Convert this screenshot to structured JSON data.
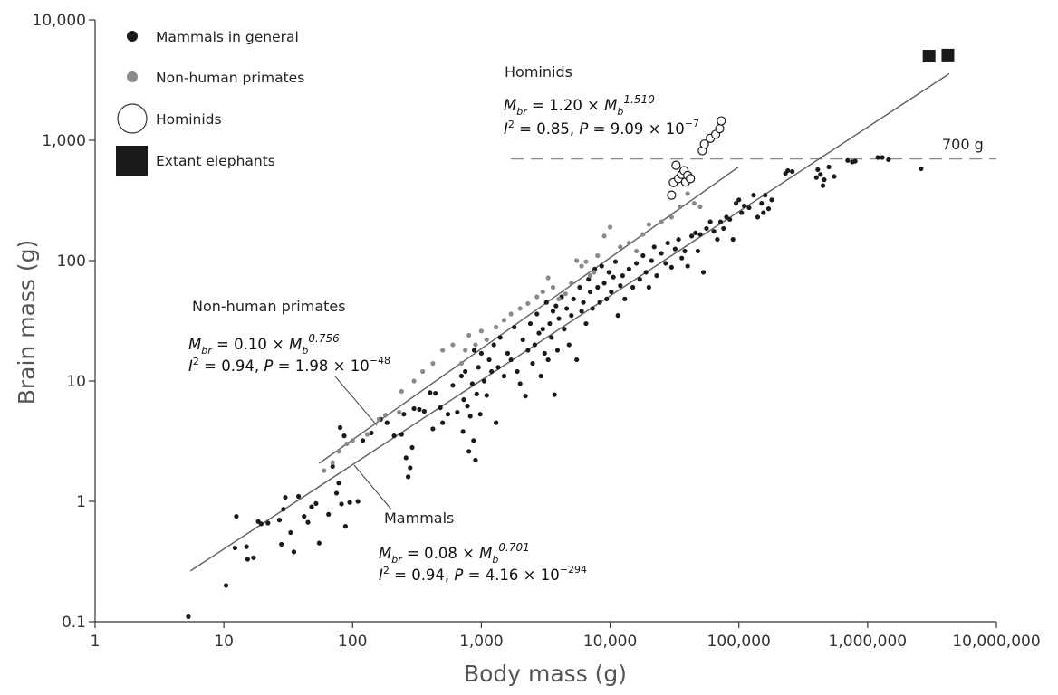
{
  "chart_data": {
    "type": "scatter",
    "xscale": "log",
    "yscale": "log",
    "xlim": [
      1,
      10000000
    ],
    "ylim": [
      0.1,
      10000
    ],
    "xlabel": "Body mass (g)",
    "ylabel": "Brain mass (g)",
    "xticks": [
      {
        "value": 1,
        "label": "1"
      },
      {
        "value": 10,
        "label": "10"
      },
      {
        "value": 100,
        "label": "100"
      },
      {
        "value": 1000,
        "label": "1,000"
      },
      {
        "value": 10000,
        "label": "10,000"
      },
      {
        "value": 100000,
        "label": "100,000"
      },
      {
        "value": 1000000,
        "label": "1,000,000"
      },
      {
        "value": 10000000,
        "label": "10,000,000"
      }
    ],
    "yticks": [
      {
        "value": 0.1,
        "label": "0.1"
      },
      {
        "value": 1,
        "label": "1"
      },
      {
        "value": 10,
        "label": "10"
      },
      {
        "value": 100,
        "label": "100"
      },
      {
        "value": 1000,
        "label": "1,000"
      },
      {
        "value": 10000,
        "label": "10,000"
      }
    ],
    "legend": [
      {
        "label": "Mammals in general",
        "marker": "circle",
        "color": "#1a1a1a"
      },
      {
        "label": "Non-human primates",
        "marker": "circle",
        "color": "#8a8a8a"
      },
      {
        "label": "Hominids",
        "marker": "open-circle",
        "color": "#1a1a1a"
      },
      {
        "label": "Extant elephants",
        "marker": "square",
        "color": "#1a1a1a"
      }
    ],
    "series": [
      {
        "name": "Mammals in general",
        "color": "#1a1a1a",
        "points": [
          [
            5.3,
            0.11
          ],
          [
            10.4,
            0.2
          ],
          [
            12.5,
            0.75
          ],
          [
            12.2,
            0.41
          ],
          [
            15,
            0.42
          ],
          [
            15.3,
            0.33
          ],
          [
            17,
            0.34
          ],
          [
            18.5,
            0.68
          ],
          [
            19.5,
            0.65
          ],
          [
            22,
            0.66
          ],
          [
            27,
            0.7
          ],
          [
            28,
            0.44
          ],
          [
            29,
            0.86
          ],
          [
            30,
            1.08
          ],
          [
            33,
            0.55
          ],
          [
            35,
            0.38
          ],
          [
            38,
            1.1
          ],
          [
            42,
            0.75
          ],
          [
            45,
            0.67
          ],
          [
            48,
            0.9
          ],
          [
            52,
            0.96
          ],
          [
            55,
            0.45
          ],
          [
            65,
            0.78
          ],
          [
            70,
            1.95
          ],
          [
            75,
            1.17
          ],
          [
            78,
            1.42
          ],
          [
            80,
            4.1
          ],
          [
            82,
            0.95
          ],
          [
            86,
            3.5
          ],
          [
            88,
            0.62
          ],
          [
            95,
            0.98
          ],
          [
            110,
            1.0
          ],
          [
            120,
            3.2
          ],
          [
            140,
            3.7
          ],
          [
            165,
            4.8
          ],
          [
            185,
            4.5
          ],
          [
            210,
            3.5
          ],
          [
            240,
            3.6
          ],
          [
            250,
            5.3
          ],
          [
            260,
            2.3
          ],
          [
            270,
            1.6
          ],
          [
            280,
            1.9
          ],
          [
            290,
            2.8
          ],
          [
            300,
            5.9
          ],
          [
            330,
            5.8
          ],
          [
            360,
            5.6
          ],
          [
            400,
            8.0
          ],
          [
            420,
            4.0
          ],
          [
            440,
            7.9
          ],
          [
            480,
            6.0
          ],
          [
            500,
            4.5
          ],
          [
            550,
            5.3
          ],
          [
            600,
            9.2
          ],
          [
            650,
            5.5
          ],
          [
            700,
            11
          ],
          [
            720,
            3.8
          ],
          [
            730,
            7.0
          ],
          [
            750,
            12
          ],
          [
            780,
            6.2
          ],
          [
            800,
            2.6
          ],
          [
            820,
            5.1
          ],
          [
            850,
            9.5
          ],
          [
            870,
            3.2
          ],
          [
            880,
            18
          ],
          [
            900,
            2.2
          ],
          [
            920,
            7.8
          ],
          [
            950,
            13
          ],
          [
            980,
            5.3
          ],
          [
            1000,
            17
          ],
          [
            1050,
            10
          ],
          [
            1100,
            7.6
          ],
          [
            1150,
            15
          ],
          [
            1200,
            12
          ],
          [
            1250,
            20
          ],
          [
            1300,
            4.5
          ],
          [
            1350,
            13
          ],
          [
            1400,
            23
          ],
          [
            1500,
            11
          ],
          [
            1600,
            17
          ],
          [
            1700,
            15
          ],
          [
            1800,
            28
          ],
          [
            1900,
            12
          ],
          [
            2000,
            9.5
          ],
          [
            2100,
            22
          ],
          [
            2200,
            7.5
          ],
          [
            2300,
            18
          ],
          [
            2400,
            30
          ],
          [
            2500,
            14
          ],
          [
            2600,
            20
          ],
          [
            2700,
            36
          ],
          [
            2800,
            25
          ],
          [
            2900,
            11
          ],
          [
            3000,
            27
          ],
          [
            3100,
            17
          ],
          [
            3200,
            45
          ],
          [
            3300,
            15
          ],
          [
            3400,
            30
          ],
          [
            3500,
            23
          ],
          [
            3600,
            38
          ],
          [
            3700,
            7.7
          ],
          [
            3800,
            42
          ],
          [
            3900,
            18
          ],
          [
            4000,
            33
          ],
          [
            4200,
            50
          ],
          [
            4400,
            27
          ],
          [
            4600,
            40
          ],
          [
            4800,
            20
          ],
          [
            5000,
            35
          ],
          [
            5200,
            48
          ],
          [
            5500,
            15
          ],
          [
            5800,
            60
          ],
          [
            6000,
            38
          ],
          [
            6200,
            45
          ],
          [
            6500,
            30
          ],
          [
            6800,
            70
          ],
          [
            7000,
            55
          ],
          [
            7300,
            40
          ],
          [
            7600,
            85
          ],
          [
            8000,
            60
          ],
          [
            8300,
            45
          ],
          [
            8600,
            90
          ],
          [
            9000,
            65
          ],
          [
            9400,
            48
          ],
          [
            9800,
            80
          ],
          [
            10200,
            55
          ],
          [
            10600,
            73
          ],
          [
            11000,
            98
          ],
          [
            11500,
            35
          ],
          [
            12000,
            62
          ],
          [
            12500,
            75
          ],
          [
            13000,
            48
          ],
          [
            14000,
            85
          ],
          [
            15000,
            60
          ],
          [
            16000,
            95
          ],
          [
            17000,
            70
          ],
          [
            18000,
            110
          ],
          [
            19000,
            80
          ],
          [
            20000,
            60
          ],
          [
            21000,
            100
          ],
          [
            22000,
            130
          ],
          [
            23000,
            75
          ],
          [
            25000,
            115
          ],
          [
            27000,
            95
          ],
          [
            28000,
            140
          ],
          [
            30000,
            88
          ],
          [
            32000,
            125
          ],
          [
            34000,
            150
          ],
          [
            36000,
            105
          ],
          [
            38000,
            120
          ],
          [
            40000,
            90
          ],
          [
            43000,
            160
          ],
          [
            46000,
            170
          ],
          [
            48000,
            120
          ],
          [
            50000,
            165
          ],
          [
            53000,
            80
          ],
          [
            56000,
            185
          ],
          [
            60000,
            210
          ],
          [
            64000,
            175
          ],
          [
            68000,
            150
          ],
          [
            72000,
            210
          ],
          [
            76000,
            185
          ],
          [
            80000,
            230
          ],
          [
            85000,
            220
          ],
          [
            90000,
            150
          ],
          [
            95000,
            300
          ],
          [
            100000,
            320
          ],
          [
            105000,
            250
          ],
          [
            110000,
            285
          ],
          [
            120000,
            275
          ],
          [
            130000,
            350
          ],
          [
            140000,
            230
          ],
          [
            150000,
            300
          ],
          [
            155000,
            250
          ],
          [
            160000,
            350
          ],
          [
            170000,
            270
          ],
          [
            180000,
            320
          ],
          [
            230000,
            530
          ],
          [
            240000,
            560
          ],
          [
            260000,
            550
          ],
          [
            400000,
            490
          ],
          [
            410000,
            570
          ],
          [
            430000,
            520
          ],
          [
            450000,
            420
          ],
          [
            460000,
            470
          ],
          [
            500000,
            600
          ],
          [
            550000,
            500
          ],
          [
            700000,
            680
          ],
          [
            760000,
            660
          ],
          [
            800000,
            670
          ],
          [
            1200000,
            720
          ],
          [
            1300000,
            720
          ],
          [
            1450000,
            690
          ],
          [
            2600000,
            580
          ]
        ]
      },
      {
        "name": "Non-human primates",
        "color": "#8a8a8a",
        "points": [
          [
            60,
            1.8
          ],
          [
            70,
            2.1
          ],
          [
            78,
            2.6
          ],
          [
            90,
            3.0
          ],
          [
            100,
            3.2
          ],
          [
            130,
            3.6
          ],
          [
            160,
            4.8
          ],
          [
            180,
            5.2
          ],
          [
            230,
            5.5
          ],
          [
            240,
            8.2
          ],
          [
            300,
            10
          ],
          [
            350,
            12
          ],
          [
            420,
            14
          ],
          [
            500,
            18
          ],
          [
            600,
            20
          ],
          [
            700,
            14
          ],
          [
            750,
            18
          ],
          [
            800,
            24
          ],
          [
            900,
            20
          ],
          [
            1000,
            26
          ],
          [
            1100,
            22
          ],
          [
            1300,
            28
          ],
          [
            1500,
            32
          ],
          [
            1700,
            36
          ],
          [
            2000,
            40
          ],
          [
            2300,
            44
          ],
          [
            2700,
            50
          ],
          [
            3000,
            55
          ],
          [
            3300,
            72
          ],
          [
            3600,
            60
          ],
          [
            4000,
            48
          ],
          [
            4500,
            53
          ],
          [
            5000,
            65
          ],
          [
            5500,
            100
          ],
          [
            6000,
            90
          ],
          [
            6500,
            98
          ],
          [
            7000,
            75
          ],
          [
            7500,
            80
          ],
          [
            8000,
            110
          ],
          [
            9000,
            160
          ],
          [
            10000,
            190
          ],
          [
            12000,
            130
          ],
          [
            14000,
            140
          ],
          [
            16000,
            120
          ],
          [
            18000,
            165
          ],
          [
            20000,
            200
          ],
          [
            25000,
            210
          ],
          [
            30000,
            230
          ],
          [
            35000,
            280
          ],
          [
            40000,
            360
          ],
          [
            45000,
            300
          ],
          [
            50000,
            280
          ]
        ]
      },
      {
        "name": "Hominids",
        "color": "#1a1a1a",
        "points": [
          [
            30000,
            350
          ],
          [
            31000,
            445
          ],
          [
            32500,
            620
          ],
          [
            34000,
            480
          ],
          [
            36000,
            520
          ],
          [
            37500,
            560
          ],
          [
            38500,
            450
          ],
          [
            40000,
            510
          ],
          [
            42000,
            480
          ],
          [
            52000,
            820
          ],
          [
            54000,
            930
          ],
          [
            60000,
            1040
          ],
          [
            66000,
            1120
          ],
          [
            71000,
            1250
          ],
          [
            73000,
            1450
          ]
        ]
      },
      {
        "name": "Extant elephants",
        "color": "#1a1a1a",
        "points": [
          [
            3000000,
            5000
          ],
          [
            4200000,
            5100
          ]
        ]
      }
    ],
    "fit_lines": [
      {
        "name": "Mammals",
        "x0": 5.5,
        "x1": 4300000,
        "a": 0.08,
        "b": 0.701,
        "color": "#666666"
      },
      {
        "name": "Non-human primates",
        "x0": 55,
        "x1": 100000,
        "a": 0.1,
        "b": 0.756,
        "color": "#666666"
      },
      {
        "name": "Hominids",
        "x0": 44000,
        "x1": 73000,
        "a": 1.2,
        "b": 1.51,
        "color": "#666666"
      }
    ],
    "reference_line": {
      "y": 700,
      "x0": 1700,
      "x1": 10000000,
      "label": "700 g",
      "style": "dashed"
    },
    "annotations": {
      "hominids": {
        "title": "Hominids",
        "eq": {
          "lhs": "M",
          "lhs_sub": "br",
          "mid": " = 1.20 × ",
          "rhs": "M",
          "rhs_sub": "b",
          "exp": "1.510"
        },
        "stat": {
          "r": "I",
          "r_sup": "2",
          "rest": " = 0.85, ",
          "p": "P",
          "prest": " = 9.09 × 10",
          "pexp": "−7"
        }
      },
      "primates": {
        "title": "Non-human primates",
        "eq": {
          "lhs": "M",
          "lhs_sub": "br",
          "mid": " = 0.10 × ",
          "rhs": "M",
          "rhs_sub": "b",
          "exp": "0.756"
        },
        "stat": {
          "r": "I",
          "r_sup": "2",
          "rest": " = 0.94, ",
          "p": "P",
          "prest": " = 1.98 × 10",
          "pexp": "−48"
        }
      },
      "mammals": {
        "title": "Mammals",
        "eq": {
          "lhs": "M",
          "lhs_sub": "br",
          "mid": " = 0.08 × ",
          "rhs": "M",
          "rhs_sub": "b",
          "exp": "0.701"
        },
        "stat": {
          "r": "I",
          "r_sup": "2",
          "rest": " = 0.94, ",
          "p": "P",
          "prest": " = 4.16 × 10",
          "pexp": "−294"
        }
      }
    }
  }
}
